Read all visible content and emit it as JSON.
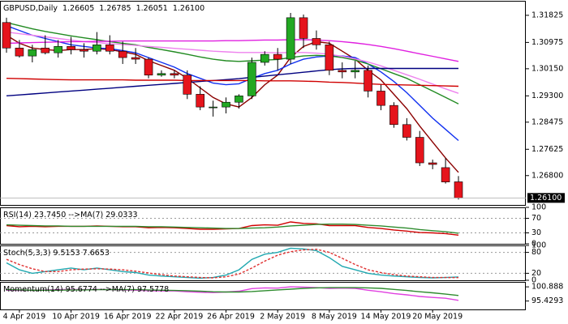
{
  "chart_data": [
    {
      "type": "candlestick",
      "title": "GBPUSD,Daily",
      "ohlc_labels": [
        "1.26605",
        "1.26785",
        "1.26051",
        "1.26100"
      ],
      "categories": [
        null,
        "4 Apr 2019",
        null,
        null,
        null,
        "10 Apr 2019",
        null,
        null,
        null,
        "16 Apr 2019",
        null,
        null,
        null,
        "22 Apr 2019",
        null,
        null,
        null,
        "26 Apr 2019",
        null,
        null,
        null,
        "2 May 2019",
        null,
        null,
        null,
        "8 May 2019",
        null,
        null,
        null,
        "14 May 2019",
        null,
        null,
        null,
        "20 May 2019",
        null,
        null
      ],
      "open": [
        1.316,
        1.308,
        1.3055,
        1.308,
        1.3065,
        1.3085,
        1.3075,
        1.307,
        1.309,
        1.307,
        1.305,
        1.3045,
        1.2995,
        1.3,
        1.2995,
        1.2935,
        1.2895,
        1.2895,
        1.291,
        1.293,
        1.3035,
        1.306,
        1.3045,
        1.3175,
        1.311,
        1.309,
        1.301,
        1.3005,
        1.301,
        1.2945,
        1.29,
        1.284,
        1.28,
        1.272,
        1.2705,
        1.26605
      ],
      "high": [
        1.3175,
        1.3105,
        1.309,
        1.312,
        1.3105,
        1.3115,
        1.3095,
        1.313,
        1.312,
        1.31,
        1.308,
        1.305,
        1.301,
        1.301,
        1.301,
        1.296,
        1.2915,
        1.2925,
        1.2935,
        1.305,
        1.307,
        1.308,
        1.319,
        1.3185,
        1.3135,
        1.31,
        1.3035,
        1.304,
        1.3025,
        1.2965,
        1.291,
        1.286,
        1.282,
        1.273,
        1.2735,
        1.26785
      ],
      "low": [
        1.3065,
        1.305,
        1.3035,
        1.306,
        1.305,
        1.306,
        1.305,
        1.306,
        1.306,
        1.303,
        1.303,
        1.2985,
        1.299,
        1.2985,
        1.292,
        1.2885,
        1.2865,
        1.2875,
        1.289,
        1.292,
        1.3025,
        1.301,
        1.303,
        1.308,
        1.3075,
        1.2995,
        1.2985,
        1.2985,
        1.2925,
        1.2885,
        1.283,
        1.279,
        1.271,
        1.27,
        1.2655,
        1.26051
      ],
      "close": [
        1.308,
        1.3055,
        1.3075,
        1.3065,
        1.3085,
        1.3075,
        1.307,
        1.309,
        1.307,
        1.305,
        1.3045,
        1.2995,
        1.3,
        1.2995,
        1.2935,
        1.2895,
        1.2895,
        1.291,
        1.293,
        1.3035,
        1.306,
        1.3045,
        1.3175,
        1.311,
        1.309,
        1.301,
        1.3005,
        1.301,
        1.2945,
        1.29,
        1.284,
        1.28,
        1.272,
        1.2715,
        1.266,
        1.261
      ],
      "bull_color": "#22a822",
      "bear_color": "#e5141c",
      "series": [
        {
          "color": "#8b0000",
          "values": [
            1.312,
            1.3095,
            1.308,
            1.3075,
            1.3072,
            1.3075,
            1.3075,
            1.3078,
            1.3075,
            1.3068,
            1.306,
            1.304,
            1.3025,
            1.301,
            1.2985,
            1.2955,
            1.2925,
            1.2905,
            1.2895,
            1.2925,
            1.2965,
            1.2995,
            1.305,
            1.3085,
            1.31,
            1.3095,
            1.307,
            1.3045,
            1.301,
            1.298,
            1.2935,
            1.289,
            1.2835,
            1.2785,
            1.2735,
            1.269
          ]
        },
        {
          "color": "#1030f0",
          "values": [
            1.315,
            1.3135,
            1.312,
            1.311,
            1.31,
            1.309,
            1.3085,
            1.308,
            1.3078,
            1.3072,
            1.3065,
            1.305,
            1.3035,
            1.302,
            1.3,
            1.2985,
            1.297,
            1.2965,
            1.2968,
            1.2985,
            1.3,
            1.301,
            1.303,
            1.3045,
            1.3052,
            1.3055,
            1.3055,
            1.305,
            1.303,
            1.3005,
            1.2975,
            1.294,
            1.29,
            1.286,
            1.2825,
            1.279
          ]
        },
        {
          "color": "#228b22",
          "values": [
            1.316,
            1.315,
            1.314,
            1.3132,
            1.3125,
            1.3118,
            1.3112,
            1.3106,
            1.31,
            1.3095,
            1.309,
            1.3082,
            1.3075,
            1.3068,
            1.306,
            1.3052,
            1.3045,
            1.304,
            1.3038,
            1.304,
            1.3042,
            1.3044,
            1.305,
            1.3055,
            1.3057,
            1.3055,
            1.305,
            1.3042,
            1.303,
            1.3015,
            1.3,
            1.2985,
            1.2965,
            1.2945,
            1.2925,
            1.2905
          ]
        },
        {
          "color": "#ee82ee",
          "values": [
            1.313,
            1.3125,
            1.312,
            1.3115,
            1.311,
            1.3105,
            1.31,
            1.3097,
            1.3094,
            1.3091,
            1.3088,
            1.3085,
            1.3082,
            1.3079,
            1.3076,
            1.3073,
            1.307,
            1.3068,
            1.3066,
            1.3066,
            1.3066,
            1.3065,
            1.3066,
            1.3066,
            1.3064,
            1.306,
            1.3054,
            1.3046,
            1.3036,
            1.3024,
            1.301,
            1.2996,
            1.2982,
            1.2967,
            1.2952,
            1.2938
          ]
        },
        {
          "color": "#e020e0",
          "values": [
            1.3095,
            1.3096,
            1.3097,
            1.3098,
            1.3099,
            1.31,
            1.31,
            1.3101,
            1.3101,
            1.3102,
            1.3102,
            1.3102,
            1.3102,
            1.3102,
            1.3102,
            1.3102,
            1.3102,
            1.3103,
            1.3103,
            1.3104,
            1.3105,
            1.3105,
            1.3106,
            1.3106,
            1.3105,
            1.3103,
            1.31,
            1.3096,
            1.3091,
            1.3085,
            1.3078,
            1.307,
            1.3062,
            1.3054,
            1.3046,
            1.3038
          ]
        },
        {
          "color": "#000080",
          "values": [
            1.293,
            1.2933,
            1.2936,
            1.2939,
            1.2942,
            1.2945,
            1.2948,
            1.2951,
            1.2954,
            1.2957,
            1.296,
            1.2963,
            1.2966,
            1.2969,
            1.2972,
            1.2975,
            1.2978,
            1.2981,
            1.2984,
            1.2988,
            1.2992,
            1.2996,
            1.3,
            1.3004,
            1.3008,
            1.3012,
            1.3015,
            1.3016,
            1.3016,
            1.3016,
            1.3016,
            1.3016,
            1.3016,
            1.3016,
            1.3016,
            1.3016
          ]
        },
        {
          "color": "#d00000",
          "values": [
            1.2985,
            1.2984,
            1.2983,
            1.2982,
            1.2981,
            1.298,
            1.298,
            1.298,
            1.298,
            1.298,
            1.2979,
            1.2979,
            1.2979,
            1.2979,
            1.2978,
            1.2978,
            1.2978,
            1.2978,
            1.2978,
            1.2978,
            1.2977,
            1.2977,
            1.2977,
            1.2976,
            1.2975,
            1.2973,
            1.2972,
            1.297,
            1.2968,
            1.2966,
            1.2965,
            1.2964,
            1.2963,
            1.2962,
            1.2961,
            1.296
          ]
        }
      ],
      "ylim": [
        1.2588,
        1.3228
      ],
      "yticks": [
        1.31825,
        1.30975,
        {
          "value": 1.3015,
          "label": "1.30150"
        },
        {
          "value": 1.293,
          "label": "1.29300"
        },
        1.28475,
        1.27625,
        {
          "value": 1.268,
          "label": "1.26800"
        }
      ],
      "last_price": {
        "value": 1.261,
        "label": "1.26100"
      }
    },
    {
      "type": "line",
      "title": "RSI(14) 23.7450 -->MA(7) 29.0333",
      "series": [
        {
          "color": "#d00000",
          "values": [
            50,
            47,
            48,
            47,
            48,
            48,
            48,
            49,
            48,
            47,
            47,
            44,
            45,
            44,
            42,
            40,
            40,
            41,
            42,
            50,
            52,
            51,
            60,
            56,
            55,
            50,
            50,
            50,
            45,
            42,
            38,
            35,
            31,
            30,
            28,
            23.745
          ]
        },
        {
          "color": "#2e8b2e",
          "values": [
            52,
            51,
            50,
            49,
            49,
            48,
            48,
            48,
            48,
            48,
            48,
            47,
            47,
            46,
            45,
            44,
            43,
            42,
            42,
            43,
            44,
            46,
            49,
            51,
            53,
            54,
            54,
            53,
            51,
            49,
            46,
            43,
            39,
            36,
            33,
            29.0333
          ]
        }
      ],
      "ylim": [
        0,
        100
      ],
      "yticks": [
        100,
        70,
        30,
        0
      ]
    },
    {
      "type": "line",
      "title": "Stoch(5,3,3) 9.5153 7.6653",
      "series": [
        {
          "color": "#20a8b0",
          "values": [
            50,
            30,
            20,
            25,
            30,
            35,
            30,
            35,
            30,
            25,
            22,
            15,
            12,
            10,
            8,
            6,
            8,
            15,
            30,
            60,
            75,
            80,
            92,
            90,
            85,
            65,
            40,
            30,
            20,
            15,
            12,
            10,
            8,
            7,
            8,
            9.5153
          ]
        },
        {
          "color": "#e03030",
          "dashed": true,
          "values": [
            60,
            45,
            33,
            25,
            25,
            30,
            32,
            33,
            32,
            30,
            26,
            21,
            16,
            12,
            10,
            8,
            7,
            10,
            18,
            35,
            55,
            72,
            82,
            87,
            89,
            80,
            63,
            45,
            30,
            22,
            16,
            12,
            10,
            8,
            8,
            7.6653
          ]
        }
      ],
      "ylim": [
        0,
        100
      ],
      "yticks": [
        100,
        80,
        20,
        0
      ]
    },
    {
      "type": "line",
      "title": "Momentum(14) 95.6774 -->MA(7) 97.5778",
      "series": [
        {
          "color": "#e040e0",
          "values": [
            99.6,
            99.5,
            99.6,
            99.7,
            99.8,
            99.9,
            99.8,
            99.9,
            99.8,
            99.7,
            99.6,
            99.4,
            99.3,
            99.3,
            99,
            98.8,
            98.7,
            98.9,
            99.2,
            100.2,
            100.5,
            100.4,
            100.9,
            100.8,
            100.6,
            100.3,
            100.4,
            100.3,
            99.6,
            99,
            98.3,
            97.8,
            97.2,
            96.8,
            96.5,
            95.6774
          ]
        },
        {
          "color": "#2e8b2e",
          "values": [
            99.8,
            99.7,
            99.6,
            99.6,
            99.6,
            99.7,
            99.7,
            99.8,
            99.8,
            99.8,
            99.8,
            99.7,
            99.6,
            99.5,
            99.4,
            99.2,
            99,
            98.9,
            98.9,
            99.1,
            99.4,
            99.7,
            100,
            100.3,
            100.5,
            100.6,
            100.6,
            100.6,
            100.5,
            100.3,
            99.9,
            99.5,
            99,
            98.6,
            98.1,
            97.5778
          ]
        }
      ],
      "ylim": [
        92.2,
        102.8
      ],
      "yticks": [
        100.888,
        95.4293
      ]
    }
  ]
}
